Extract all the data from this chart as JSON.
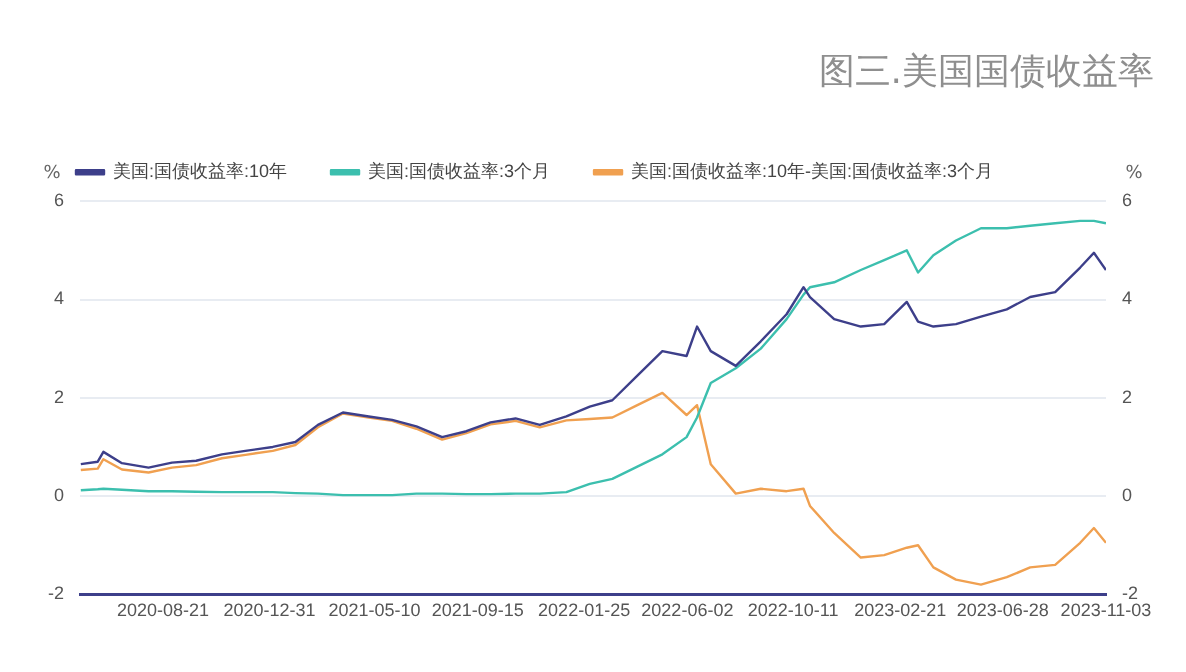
{
  "chart_data": {
    "type": "line",
    "title": "图三.美国国债收益率",
    "x": [
      "2020-05-11",
      "2020-06-01",
      "2020-06-08",
      "2020-07-01",
      "2020-08-03",
      "2020-09-01",
      "2020-10-01",
      "2020-11-02",
      "2020-12-01",
      "2021-01-04",
      "2021-02-01",
      "2021-03-01",
      "2021-04-01",
      "2021-05-03",
      "2021-06-01",
      "2021-07-01",
      "2021-08-02",
      "2021-09-01",
      "2021-10-01",
      "2021-11-01",
      "2021-12-01",
      "2022-01-03",
      "2022-02-01",
      "2022-03-01",
      "2022-04-01",
      "2022-05-02",
      "2022-06-01",
      "2022-06-14",
      "2022-07-01",
      "2022-08-01",
      "2022-09-01",
      "2022-10-03",
      "2022-10-24",
      "2022-11-01",
      "2022-12-01",
      "2023-01-03",
      "2023-02-01",
      "2023-03-01",
      "2023-03-15",
      "2023-04-03",
      "2023-05-01",
      "2023-06-01",
      "2023-07-03",
      "2023-08-01",
      "2023-09-01",
      "2023-10-02",
      "2023-10-19",
      "2023-11-03"
    ],
    "series": [
      {
        "name": "美国:国债收益率:10年",
        "color": "#3d3f8a",
        "values": [
          0.65,
          0.7,
          0.9,
          0.67,
          0.58,
          0.68,
          0.72,
          0.85,
          0.92,
          1.0,
          1.1,
          1.45,
          1.7,
          1.62,
          1.55,
          1.42,
          1.2,
          1.32,
          1.5,
          1.58,
          1.45,
          1.62,
          1.82,
          1.95,
          2.45,
          2.95,
          2.85,
          3.45,
          2.95,
          2.65,
          3.15,
          3.7,
          4.25,
          4.05,
          3.6,
          3.45,
          3.5,
          3.95,
          3.55,
          3.45,
          3.5,
          3.65,
          3.8,
          4.05,
          4.15,
          4.65,
          4.95,
          4.6
        ]
      },
      {
        "name": "美国:国债收益率:3个月",
        "color": "#3cbfae",
        "values": [
          0.12,
          0.14,
          0.15,
          0.13,
          0.1,
          0.1,
          0.09,
          0.08,
          0.08,
          0.08,
          0.06,
          0.05,
          0.02,
          0.02,
          0.02,
          0.05,
          0.05,
          0.04,
          0.04,
          0.05,
          0.05,
          0.08,
          0.25,
          0.35,
          0.6,
          0.85,
          1.2,
          1.6,
          2.3,
          2.6,
          3.0,
          3.6,
          4.1,
          4.25,
          4.35,
          4.6,
          4.8,
          5.0,
          4.55,
          4.9,
          5.2,
          5.45,
          5.45,
          5.5,
          5.55,
          5.6,
          5.6,
          5.55
        ]
      },
      {
        "name": "美国:国债收益率:10年-美国:国债收益率:3个月",
        "color": "#f0a050",
        "values": [
          0.53,
          0.56,
          0.75,
          0.54,
          0.48,
          0.58,
          0.63,
          0.77,
          0.84,
          0.92,
          1.04,
          1.4,
          1.68,
          1.6,
          1.53,
          1.37,
          1.15,
          1.28,
          1.46,
          1.53,
          1.4,
          1.54,
          1.57,
          1.6,
          1.85,
          2.1,
          1.65,
          1.85,
          0.65,
          0.05,
          0.15,
          0.1,
          0.15,
          -0.2,
          -0.75,
          -1.25,
          -1.2,
          -1.05,
          -1.0,
          -1.45,
          -1.7,
          -1.8,
          -1.65,
          -1.45,
          -1.4,
          -0.95,
          -0.65,
          -0.95
        ]
      }
    ],
    "xlim": [
      "2020-05-10",
      "2023-11-03"
    ],
    "xticks": [
      "2020-08-21",
      "2020-12-31",
      "2021-05-10",
      "2021-09-15",
      "2022-01-25",
      "2022-06-02",
      "2022-10-11",
      "2023-02-21",
      "2023-06-28",
      "2023-11-03"
    ],
    "ylim": [
      -2,
      6
    ],
    "yticks": [
      -2,
      0,
      2,
      4,
      6
    ],
    "ylabel": "%",
    "y2lim": [
      -2,
      6
    ],
    "y2ticks": [
      -2,
      0,
      2,
      4,
      6
    ],
    "y2label": "%",
    "grid": "y",
    "legend": "top left",
    "marker": "none",
    "line_style": "solid"
  }
}
